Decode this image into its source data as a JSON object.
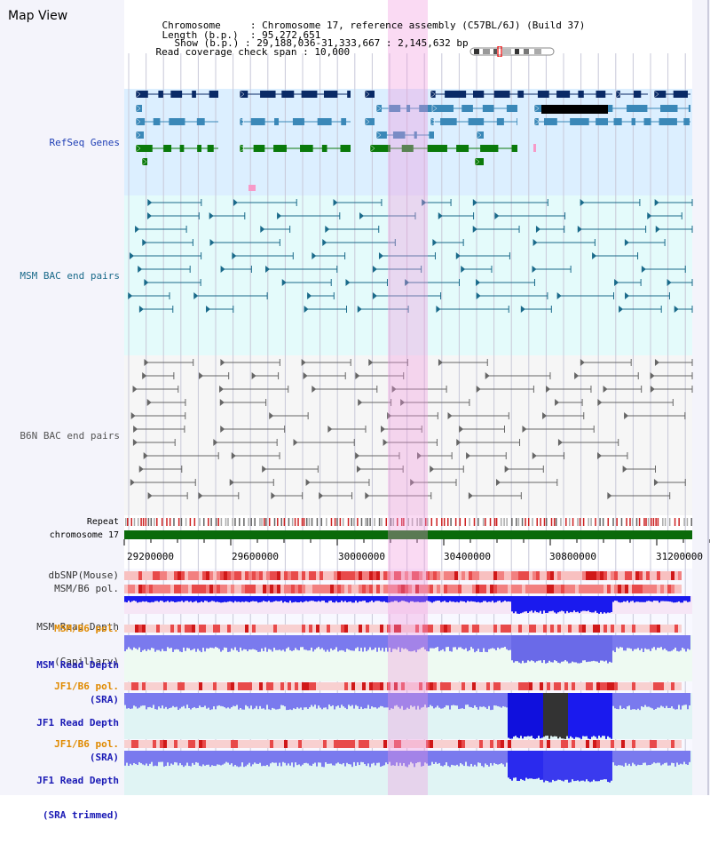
{
  "header": {
    "title": "Map View",
    "chromosome_label": "Chromosome",
    "chromosome_value": "Chromosome 17, reference assembly (C57BL/6J) (Build 37)",
    "length_label": "Length (b.p.)",
    "length_value": "95,272,651",
    "show_label": "Show (b.p.)",
    "show_value": "29,188,036-31,333,667 : 2,145,632 bp",
    "coverage_label": "Read coverage check span",
    "coverage_value": "10,000"
  },
  "tracks": {
    "refseq": "RefSeq Genes",
    "msm_bac": "MSM BAC end pairs",
    "b6n_bac": "B6N BAC end pairs",
    "repeat": "Repeat",
    "chromosome": "chromosome 17",
    "dbsnp": "dbSNP(Mouse)",
    "msm_b6_pol_1": "MSM/B6 pol.",
    "msm_depth_cap_1": "MSM Read Depth",
    "msm_depth_cap_2": "(Capillary)",
    "msm_b6_pol_2": "MSM/B6 pol.",
    "msm_depth_sra_1": "MSM Read Depth",
    "msm_depth_sra_2": "(SRA)",
    "jf1_b6_pol_1": "JF1/B6 pol.",
    "jf1_depth_sra_1": "JF1 Read Depth",
    "jf1_depth_sra_2": "(SRA)",
    "jf1_b6_pol_2": "JF1/B6 pol.",
    "jf1_depth_trim_1": "JF1 Read Depth",
    "jf1_depth_trim_2": "(SRA trimmed)"
  },
  "axis": {
    "ticks": [
      "29200000",
      "29600000",
      "30000000",
      "30400000",
      "30800000",
      "31200000"
    ]
  },
  "colors": {
    "refseq_bg": "#dcefff",
    "msm_bg": "#e4fbfb",
    "b6n_bg": "#f6f6f6",
    "highlight": "#f6c8ec",
    "gene_dark": "#0a2a66",
    "gene_mid": "#3a88b8",
    "gene_green": "#0a7a0a",
    "msm_line": "#1a6a8a",
    "b6n_line": "#666666",
    "chrom_bar": "#0a6a0a",
    "depth_blue": "#1a1aee",
    "depth_light": "#7a7aee",
    "pol_red": "#e84a4a"
  }
}
